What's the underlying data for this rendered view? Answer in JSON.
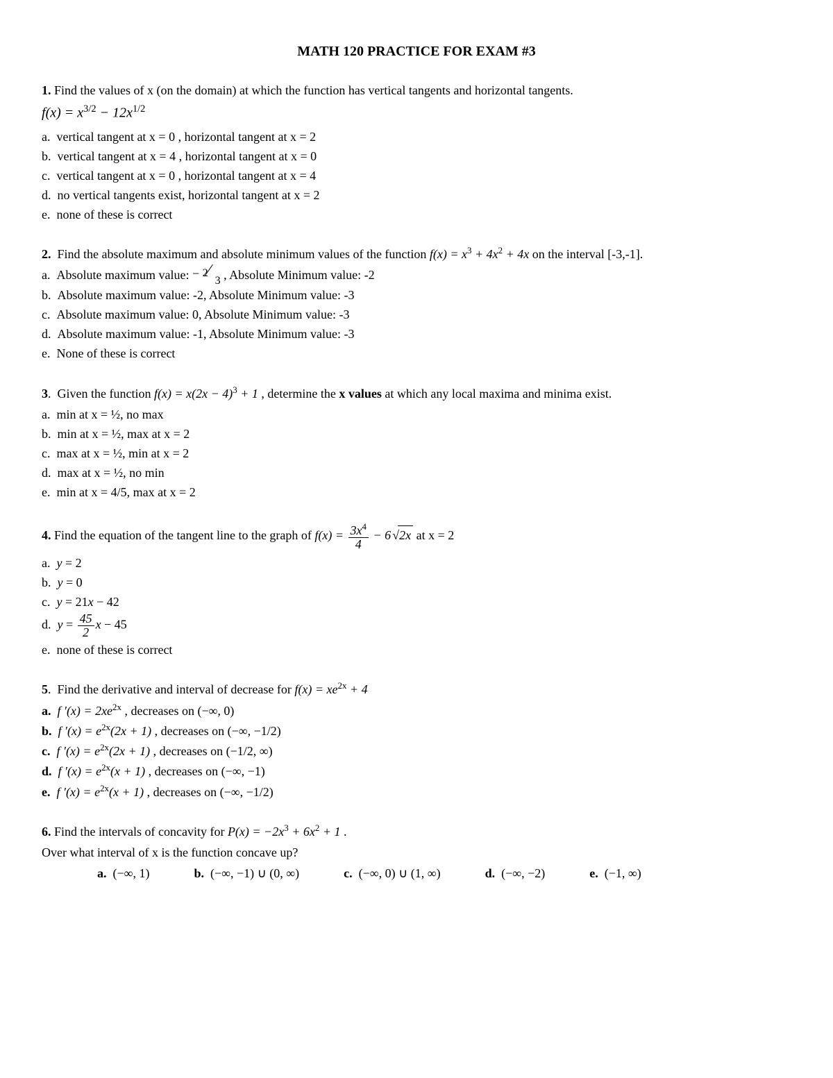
{
  "title": "MATH 120  PRACTICE FOR EXAM #3",
  "q1": {
    "num": "1.",
    "prompt": "Find the values of  x  (on the domain) at which the function has vertical tangents and horizontal tangents.",
    "a": "vertical tangent at x =  0  , horizontal tangent at x =  2",
    "b": "vertical tangent at x =  4  , horizontal tangent at x =  0",
    "c": "vertical tangent at x =  0  , horizontal tangent at x =  4",
    "d": "no vertical tangents exist, horizontal tangent at x = 2",
    "e": "none of these is correct"
  },
  "q2": {
    "num": "2.",
    "prompt_a": "Find the absolute maximum and absolute minimum  values of the function  ",
    "prompt_b": " on the interval [-3,-1].",
    "a_pre": "Absolute maximum value:  ",
    "a_post": " , Absolute Minimum value:  -2",
    "b": "Absolute maximum value:  -2, Absolute Minimum value:  -3",
    "c": "Absolute maximum value:  0, Absolute Minimum value:  -3",
    "d": "Absolute maximum value:  -1, Absolute Minimum value:  -3",
    "e": "None of these is correct"
  },
  "q3": {
    "num": "3",
    "prompt_a": "Given the function  ",
    "prompt_b": ",  determine the ",
    "prompt_c": "x values",
    "prompt_d": " at which any local maxima and minima exist.",
    "a": "min at x = ½, no max",
    "b": "min at x = ½, max at x = 2",
    "c": "max at x = ½, min at x = 2",
    "d": "max at x = ½, no min",
    "e": "min at x = 4/5, max at x = 2"
  },
  "q4": {
    "num": "4.",
    "prompt_a": "Find the equation of the tangent line to the graph of  ",
    "prompt_b": "  at x = 2",
    "e": "none of these is correct"
  },
  "q5": {
    "num": "5",
    "prompt_a": "Find the derivative and interval of decrease for "
  },
  "q6": {
    "num": "6.",
    "prompt_a": "Find the intervals of concavity for ",
    "sub": "Over what interval of x is the function concave up?"
  }
}
